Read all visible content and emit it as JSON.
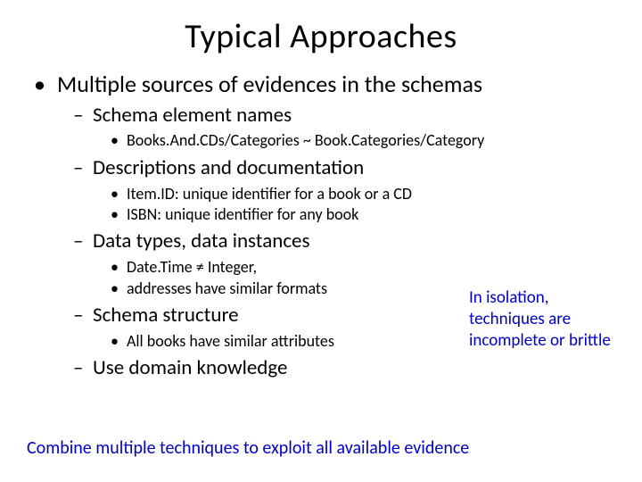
{
  "title": "Typical Approaches",
  "bullets": {
    "main": "Multiple sources of evidences in the schemas",
    "sub": [
      {
        "label": "Schema element names",
        "items": [
          "Books.And.CDs/Categories ~ Book.Categories/Category"
        ]
      },
      {
        "label": "Descriptions and documentation",
        "items": [
          "Item.ID: unique identifier for a book or a CD",
          "ISBN: unique identifier for any book"
        ]
      },
      {
        "label": "Data types, data instances",
        "items": [
          "Date.Time ≠ Integer,",
          "addresses have similar formats"
        ]
      },
      {
        "label": "Schema structure",
        "items": [
          "All books have similar attributes"
        ]
      },
      {
        "label": "Use domain knowledge",
        "items": []
      }
    ]
  },
  "aside": "In isolation, techniques are incomplete or brittle",
  "footer": "Combine multiple techniques to exploit all available evidence",
  "colors": {
    "text": "#000000",
    "accent": "#0000cc",
    "background": "#ffffff"
  },
  "fonts": {
    "title_size_pt": 38,
    "lvl1_size_pt": 26,
    "lvl2_size_pt": 23,
    "lvl3_size_pt": 18,
    "aside_size_pt": 19,
    "footer_size_pt": 20,
    "family": "Calibri"
  }
}
